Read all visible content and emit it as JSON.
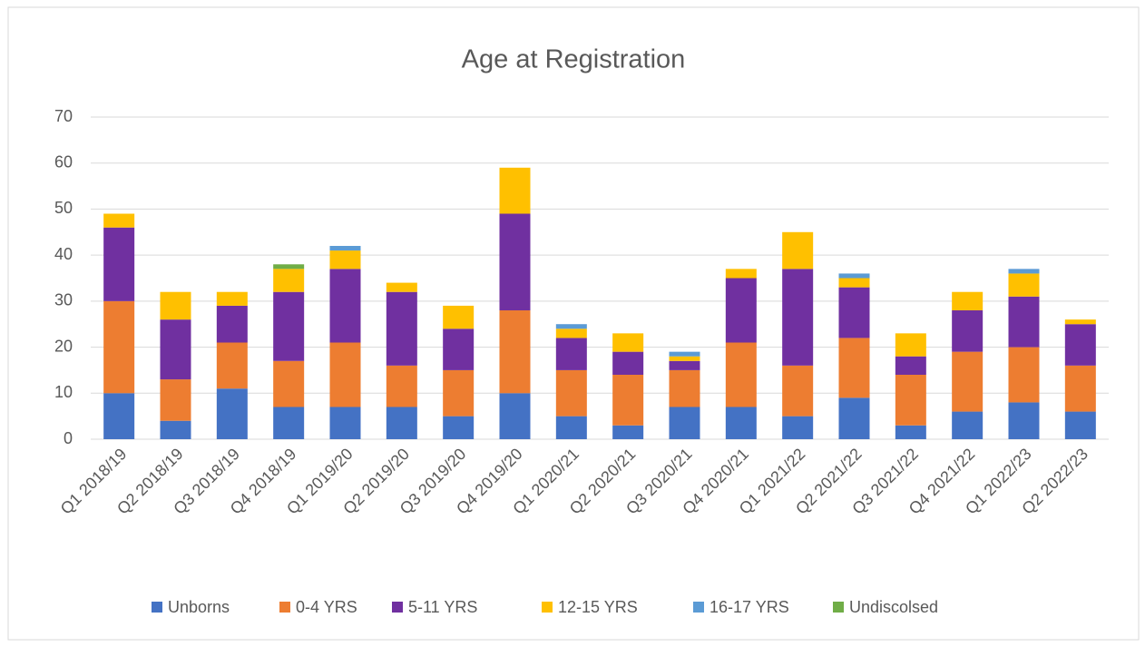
{
  "chart_data": {
    "type": "stacked_bar",
    "title": "Age at Registration",
    "categories": [
      "Q1 2018/19",
      "Q2 2018/19",
      "Q3 2018/19",
      "Q4 2018/19",
      "Q1 2019/20",
      "Q2 2019/20",
      "Q3 2019/20",
      "Q4 2019/20",
      "Q1 2020/21",
      "Q2 2020/21",
      "Q3 2020/21",
      "Q4 2020/21",
      "Q1 2021/22",
      "Q2 2021/22",
      "Q3 2021/22",
      "Q4 2021/22",
      "Q1 2022/23",
      "Q2 2022/23"
    ],
    "series": [
      {
        "name": "Unborns",
        "color": "#4472c4",
        "values": [
          10,
          4,
          11,
          7,
          7,
          7,
          5,
          10,
          5,
          3,
          7,
          7,
          5,
          9,
          3,
          6,
          8,
          6
        ]
      },
      {
        "name": "0-4 YRS",
        "color": "#ed7d31",
        "values": [
          20,
          9,
          10,
          10,
          14,
          9,
          10,
          18,
          10,
          11,
          8,
          14,
          11,
          13,
          11,
          13,
          12,
          10
        ]
      },
      {
        "name": "5-11 YRS",
        "color": "#7030a0",
        "values": [
          16,
          13,
          8,
          15,
          16,
          16,
          9,
          21,
          7,
          5,
          2,
          14,
          21,
          11,
          4,
          9,
          11,
          9
        ]
      },
      {
        "name": "12-15 YRS",
        "color": "#ffc000",
        "values": [
          3,
          6,
          3,
          5,
          4,
          2,
          5,
          10,
          2,
          4,
          1,
          2,
          8,
          2,
          5,
          4,
          5,
          1
        ]
      },
      {
        "name": "16-17 YRS",
        "color": "#5b9bd5",
        "values": [
          0,
          0,
          0,
          0,
          1,
          0,
          0,
          0,
          1,
          0,
          1,
          0,
          0,
          1,
          0,
          0,
          1,
          0
        ]
      },
      {
        "name": "Undiscolsed",
        "color": "#70ad47",
        "values": [
          0,
          0,
          0,
          1,
          0,
          0,
          0,
          0,
          0,
          0,
          0,
          0,
          0,
          0,
          0,
          0,
          0,
          0
        ]
      }
    ],
    "ylim": [
      0,
      70
    ],
    "yticks": [
      0,
      10,
      20,
      30,
      40,
      50,
      60,
      70
    ],
    "grid": true,
    "legend": "bottom"
  }
}
